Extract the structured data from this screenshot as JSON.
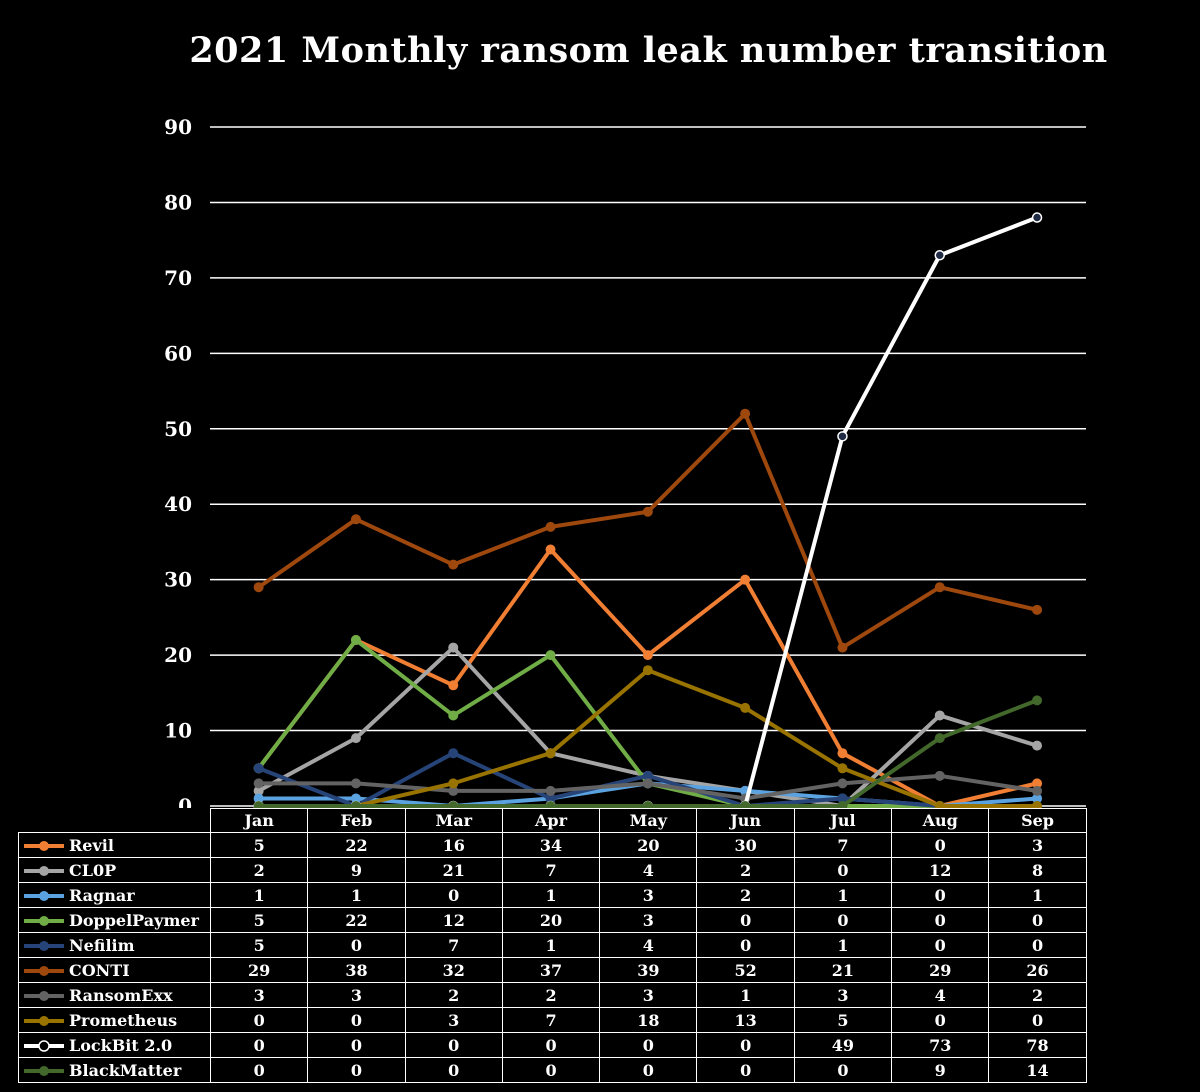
{
  "chart_data": {
    "type": "line",
    "title": "2021 Monthly ransom leak number transition",
    "categories": [
      "Jan",
      "Feb",
      "Mar",
      "Apr",
      "May",
      "Jun",
      "Jul",
      "Aug",
      "Sep"
    ],
    "ylim": [
      0,
      90
    ],
    "yticks": [
      0,
      10,
      20,
      30,
      40,
      50,
      60,
      70,
      80,
      90
    ],
    "grid": true,
    "legend": "data-table-below",
    "series": [
      {
        "name": "Revil",
        "color": "#f07f34",
        "values": [
          5,
          22,
          16,
          34,
          20,
          30,
          7,
          0,
          3
        ]
      },
      {
        "name": "CL0P",
        "color": "#a5a5a5",
        "values": [
          2,
          9,
          21,
          7,
          4,
          2,
          0,
          12,
          8
        ]
      },
      {
        "name": "Ragnar",
        "color": "#5ba3e0",
        "values": [
          1,
          1,
          0,
          1,
          3,
          2,
          1,
          0,
          1
        ]
      },
      {
        "name": "DoppelPaymer",
        "color": "#70ad47",
        "values": [
          5,
          22,
          12,
          20,
          3,
          0,
          0,
          0,
          0
        ]
      },
      {
        "name": "Nefilim",
        "color": "#264478",
        "values": [
          5,
          0,
          7,
          1,
          4,
          0,
          1,
          0,
          0
        ]
      },
      {
        "name": "CONTI",
        "color": "#9e480e",
        "values": [
          29,
          38,
          32,
          37,
          39,
          52,
          21,
          29,
          26
        ]
      },
      {
        "name": "RansomExx",
        "color": "#636363",
        "values": [
          3,
          3,
          2,
          2,
          3,
          1,
          3,
          4,
          2
        ]
      },
      {
        "name": "Prometheus",
        "color": "#997300",
        "values": [
          0,
          0,
          3,
          7,
          18,
          13,
          5,
          0,
          0
        ]
      },
      {
        "name": "LockBit 2.0",
        "color": "#ffffff",
        "marker": "hollow",
        "values": [
          0,
          0,
          0,
          0,
          0,
          0,
          49,
          73,
          78
        ]
      },
      {
        "name": "BlackMatter",
        "color": "#43682b",
        "values": [
          0,
          0,
          0,
          0,
          0,
          0,
          0,
          9,
          14
        ]
      }
    ]
  }
}
